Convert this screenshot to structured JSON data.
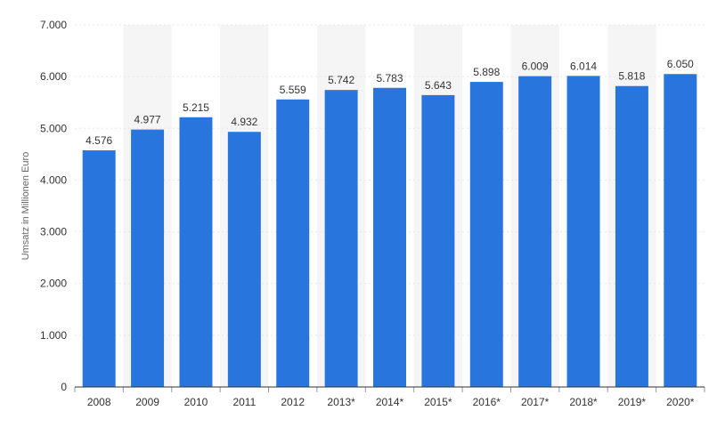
{
  "chart_data": {
    "type": "bar",
    "title": "",
    "xlabel": "",
    "ylabel": "Umsatz in Millionen Euro",
    "ylim": [
      0,
      7000
    ],
    "yticks": [
      0,
      1000,
      2000,
      3000,
      4000,
      5000,
      6000,
      7000
    ],
    "ytick_labels": [
      "0",
      "1.000",
      "2.000",
      "3.000",
      "4.000",
      "5.000",
      "6.000",
      "7.000"
    ],
    "categories": [
      "2008",
      "2009",
      "2010",
      "2011",
      "2012",
      "2013*",
      "2014*",
      "2015*",
      "2016*",
      "2017*",
      "2018*",
      "2019*",
      "2020*"
    ],
    "values": [
      4576,
      4977,
      5215,
      4932,
      5559,
      5742,
      5783,
      5643,
      5898,
      6009,
      6014,
      5818,
      6050
    ],
    "value_labels": [
      "4.576",
      "4.977",
      "5.215",
      "4.932",
      "5.559",
      "5.742",
      "5.783",
      "5.643",
      "5.898",
      "6.009",
      "6.014",
      "5.818",
      "6.050"
    ],
    "grid": true,
    "colors": {
      "bar": "#2876dd",
      "band": "#f5f5f5",
      "axis": "#333333"
    }
  }
}
